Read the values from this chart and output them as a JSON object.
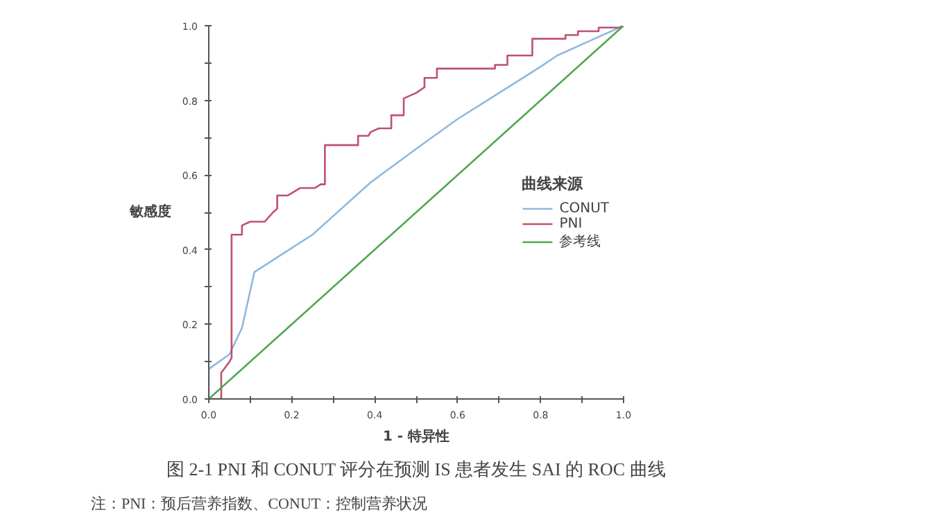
{
  "chart_data": {
    "type": "line",
    "xlabel": "1 - 特异性",
    "ylabel": "敏感度",
    "legend_title": "曲线来源",
    "annotations": [
      "图 2-1 PNI 和 CONUT 评分在预测 IS 患者发生 SAI 的 ROC 曲线",
      "注：PNI：预后营养指数、CONUT：控制营养状况"
    ],
    "xlim": [
      0,
      1
    ],
    "ylim": [
      0,
      1
    ],
    "xticks": [
      {
        "value": 0,
        "label": "0.0"
      },
      {
        "value": 0.1,
        "label": null
      },
      {
        "value": 0.2,
        "label": "0.2"
      },
      {
        "value": 0.3,
        "label": null
      },
      {
        "value": 0.4,
        "label": "0.4"
      },
      {
        "value": 0.5,
        "label": null
      },
      {
        "value": 0.6,
        "label": "0.6"
      },
      {
        "value": 0.7,
        "label": null
      },
      {
        "value": 0.8,
        "label": "0.8"
      },
      {
        "value": 0.9,
        "label": null
      },
      {
        "value": 1,
        "label": "1.0"
      }
    ],
    "yticks": [
      {
        "value": 0,
        "label": "0.0"
      },
      {
        "value": 0.1,
        "label": null
      },
      {
        "value": 0.2,
        "label": "0.2"
      },
      {
        "value": 0.3,
        "label": null
      },
      {
        "value": 0.4,
        "label": "0.4"
      },
      {
        "value": 0.5,
        "label": null
      },
      {
        "value": 0.6,
        "label": "0.6"
      },
      {
        "value": 0.7,
        "label": null
      },
      {
        "value": 0.8,
        "label": "0.8"
      },
      {
        "value": 0.9,
        "label": null
      },
      {
        "value": 1,
        "label": "1.0"
      }
    ],
    "grid": false,
    "legend": "right",
    "marker": "none",
    "line_style": "solid",
    "series": [
      {
        "name": "CONUT",
        "color": "#8fb8de",
        "x": [
          0,
          0,
          0.05,
          0.08,
          0.11,
          0.18,
          0.25,
          0.3,
          0.39,
          0.5,
          0.6,
          0.7,
          0.8,
          0.84,
          0.9,
          1
        ],
        "values": [
          0,
          0.08,
          0.12,
          0.19,
          0.34,
          0.39,
          0.44,
          0.49,
          0.58,
          0.67,
          0.75,
          0.82,
          0.89,
          0.92,
          0.95,
          1
        ]
      },
      {
        "name": "PNI",
        "color": "#c0506e",
        "x": [
          0,
          0.03,
          0.03,
          0.05,
          0.055,
          0.055,
          0.08,
          0.08,
          0.1,
          0.135,
          0.155,
          0.165,
          0.165,
          0.19,
          0.22,
          0.255,
          0.27,
          0.28,
          0.28,
          0.36,
          0.36,
          0.385,
          0.39,
          0.41,
          0.44,
          0.44,
          0.47,
          0.47,
          0.5,
          0.52,
          0.52,
          0.55,
          0.55,
          0.69,
          0.69,
          0.72,
          0.72,
          0.78,
          0.78,
          0.86,
          0.86,
          0.89,
          0.89,
          0.94,
          0.94,
          0.99,
          1
        ],
        "values": [
          0,
          0,
          0.07,
          0.1,
          0.11,
          0.44,
          0.44,
          0.465,
          0.475,
          0.475,
          0.5,
          0.51,
          0.545,
          0.545,
          0.565,
          0.565,
          0.575,
          0.575,
          0.68,
          0.68,
          0.705,
          0.705,
          0.715,
          0.725,
          0.725,
          0.76,
          0.76,
          0.805,
          0.82,
          0.835,
          0.86,
          0.86,
          0.885,
          0.885,
          0.895,
          0.895,
          0.92,
          0.92,
          0.965,
          0.965,
          0.975,
          0.975,
          0.985,
          0.985,
          0.995,
          0.995,
          1
        ]
      },
      {
        "name": "参考线",
        "color": "#4ea84e",
        "x": [
          0,
          1
        ],
        "values": [
          0,
          1
        ]
      }
    ]
  }
}
